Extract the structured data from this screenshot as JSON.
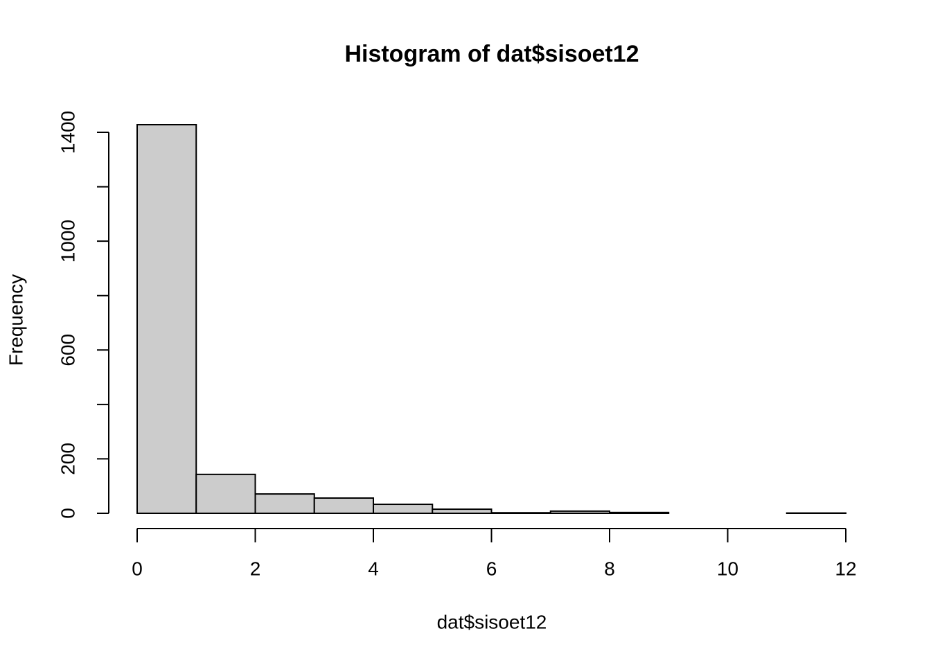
{
  "chart_data": {
    "type": "histogram",
    "title": "Histogram of dat$sisoet12",
    "x_label": "dat$sisoet12",
    "y_label": "Frequency",
    "bins": [
      0,
      1,
      2,
      3,
      4,
      5,
      6,
      7,
      8,
      9,
      10,
      11,
      12
    ],
    "values": [
      1428,
      143,
      71,
      56,
      33,
      15,
      2,
      8,
      3,
      0,
      0,
      1
    ],
    "color": "#cccccc",
    "xlim": [
      0,
      12
    ],
    "xticks": [
      0,
      2,
      4,
      6,
      8,
      10,
      12
    ],
    "ylim": [
      0,
      1400
    ],
    "yticks": [
      0,
      200,
      {
        "value": 400,
        "label": null
      },
      600,
      {
        "value": 800,
        "label": null
      },
      1000,
      {
        "value": 1200,
        "label": null
      },
      1400
    ]
  }
}
